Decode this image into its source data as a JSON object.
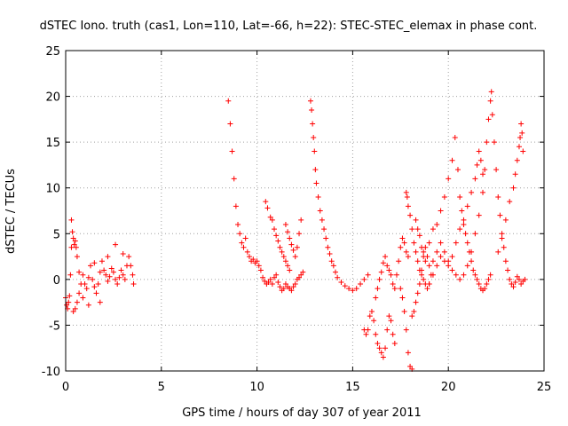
{
  "chart_data": {
    "type": "scatter",
    "title": "dSTEC Iono. truth (cas1, Lon=110, Lat=-66, h=22): STEC-STEC_elemax in phase cont.",
    "xlabel": "GPS time / hours of day 307 of year 2011",
    "ylabel": "dSTEC  / TECUs",
    "xlim": [
      0,
      25
    ],
    "ylim": [
      -10,
      25
    ],
    "xticks": [
      "0",
      "5",
      "10",
      "15",
      "20",
      "25"
    ],
    "yticks": [
      "-10",
      "-5",
      "0",
      "5",
      "10",
      "15",
      "20",
      "25"
    ],
    "grid": true,
    "marker": "+",
    "color": "#ff0000",
    "series": [
      {
        "points": [
          [
            0.0,
            -2.0
          ],
          [
            0.05,
            -2.8
          ],
          [
            0.1,
            -3.2
          ],
          [
            0.15,
            -2.5
          ],
          [
            0.2,
            -1.8
          ],
          [
            0.25,
            0.5
          ],
          [
            0.3,
            3.5
          ],
          [
            0.3,
            6.5
          ],
          [
            0.35,
            5.2
          ],
          [
            0.4,
            4.5
          ],
          [
            0.45,
            3.8
          ],
          [
            0.5,
            4.2
          ],
          [
            0.55,
            3.5
          ],
          [
            0.6,
            2.5
          ],
          [
            0.4,
            -3.5
          ],
          [
            0.5,
            -3.2
          ],
          [
            0.6,
            -2.5
          ],
          [
            0.7,
            -1.5
          ],
          [
            0.8,
            -0.5
          ],
          [
            0.9,
            0.5
          ],
          [
            1.0,
            -0.5
          ],
          [
            1.1,
            -1.0
          ],
          [
            1.2,
            0.2
          ],
          [
            1.3,
            1.5
          ],
          [
            1.4,
            0.0
          ],
          [
            1.5,
            -0.8
          ],
          [
            1.6,
            -1.5
          ],
          [
            1.7,
            -0.5
          ],
          [
            1.8,
            0.8
          ],
          [
            1.9,
            2.0
          ],
          [
            2.0,
            1.0
          ],
          [
            2.1,
            0.5
          ],
          [
            2.2,
            -0.2
          ],
          [
            2.3,
            0.3
          ],
          [
            2.4,
            1.2
          ],
          [
            2.5,
            0.8
          ],
          [
            2.6,
            0.0
          ],
          [
            2.7,
            -0.5
          ],
          [
            2.8,
            0.2
          ],
          [
            2.9,
            1.0
          ],
          [
            3.0,
            0.5
          ],
          [
            3.1,
            0.0
          ],
          [
            3.2,
            1.5
          ],
          [
            3.3,
            2.5
          ],
          [
            3.4,
            1.5
          ],
          [
            3.5,
            0.5
          ],
          [
            3.55,
            -0.5
          ],
          [
            0.7,
            0.8
          ],
          [
            0.9,
            -2.0
          ],
          [
            1.2,
            -2.8
          ],
          [
            1.5,
            1.8
          ],
          [
            1.8,
            -2.5
          ],
          [
            2.2,
            2.5
          ],
          [
            2.6,
            3.8
          ],
          [
            3.0,
            2.8
          ],
          [
            8.5,
            19.5
          ],
          [
            8.6,
            17.0
          ],
          [
            8.7,
            14.0
          ],
          [
            8.8,
            11.0
          ],
          [
            8.9,
            8.0
          ],
          [
            9.0,
            6.0
          ],
          [
            9.1,
            5.0
          ],
          [
            9.2,
            4.0
          ],
          [
            9.3,
            3.5
          ],
          [
            9.4,
            4.5
          ],
          [
            9.5,
            3.0
          ],
          [
            9.6,
            2.5
          ],
          [
            9.7,
            2.0
          ],
          [
            9.8,
            2.2
          ],
          [
            9.9,
            1.8
          ],
          [
            10.0,
            2.0
          ],
          [
            10.1,
            1.5
          ],
          [
            10.2,
            1.0
          ],
          [
            10.3,
            0.2
          ],
          [
            10.4,
            -0.2
          ],
          [
            10.5,
            -0.5
          ],
          [
            10.6,
            -0.3
          ],
          [
            10.7,
            0.0
          ],
          [
            10.8,
            -0.5
          ],
          [
            10.9,
            0.2
          ],
          [
            11.0,
            0.5
          ],
          [
            11.1,
            -0.3
          ],
          [
            11.2,
            -0.8
          ],
          [
            11.3,
            -1.2
          ],
          [
            11.4,
            -1.0
          ],
          [
            11.5,
            -0.5
          ],
          [
            11.6,
            -0.8
          ],
          [
            11.7,
            -1.0
          ],
          [
            11.8,
            -1.2
          ],
          [
            11.9,
            -0.8
          ],
          [
            12.0,
            -0.5
          ],
          [
            12.1,
            0.0
          ],
          [
            12.2,
            0.2
          ],
          [
            12.3,
            0.5
          ],
          [
            12.4,
            0.8
          ],
          [
            10.45,
            8.5
          ],
          [
            10.55,
            7.8
          ],
          [
            10.7,
            6.8
          ],
          [
            10.8,
            6.5
          ],
          [
            10.9,
            5.5
          ],
          [
            11.0,
            4.8
          ],
          [
            11.1,
            4.2
          ],
          [
            11.2,
            3.5
          ],
          [
            11.3,
            3.0
          ],
          [
            11.4,
            2.5
          ],
          [
            11.5,
            2.0
          ],
          [
            11.6,
            1.5
          ],
          [
            11.7,
            1.0
          ],
          [
            11.5,
            6.0
          ],
          [
            11.6,
            5.2
          ],
          [
            11.7,
            4.5
          ],
          [
            11.8,
            3.8
          ],
          [
            11.9,
            3.2
          ],
          [
            12.0,
            2.5
          ],
          [
            12.1,
            3.5
          ],
          [
            12.2,
            5.0
          ],
          [
            12.3,
            6.5
          ],
          [
            12.8,
            19.5
          ],
          [
            12.85,
            18.5
          ],
          [
            12.9,
            17.0
          ],
          [
            12.95,
            15.5
          ],
          [
            13.0,
            14.0
          ],
          [
            13.05,
            12.0
          ],
          [
            13.1,
            10.5
          ],
          [
            13.2,
            9.0
          ],
          [
            13.3,
            7.5
          ],
          [
            13.4,
            6.5
          ],
          [
            13.5,
            5.5
          ],
          [
            13.6,
            4.5
          ],
          [
            13.7,
            3.5
          ],
          [
            13.8,
            2.8
          ],
          [
            13.9,
            2.0
          ],
          [
            14.0,
            1.5
          ],
          [
            14.1,
            0.8
          ],
          [
            14.2,
            0.2
          ],
          [
            14.4,
            -0.3
          ],
          [
            14.6,
            -0.7
          ],
          [
            14.8,
            -1.0
          ],
          [
            15.0,
            -1.2
          ],
          [
            15.2,
            -1.0
          ],
          [
            15.4,
            -0.5
          ],
          [
            15.6,
            0.0
          ],
          [
            15.8,
            0.5
          ],
          [
            15.6,
            -5.5
          ],
          [
            15.7,
            -6.0
          ],
          [
            15.8,
            -5.5
          ],
          [
            15.9,
            -4.0
          ],
          [
            16.0,
            -3.5
          ],
          [
            16.1,
            -4.5
          ],
          [
            16.2,
            -6.0
          ],
          [
            16.3,
            -7.0
          ],
          [
            16.4,
            -7.5
          ],
          [
            16.5,
            -8.0
          ],
          [
            16.6,
            -8.5
          ],
          [
            16.7,
            -7.5
          ],
          [
            16.8,
            -5.5
          ],
          [
            16.9,
            -4.0
          ],
          [
            17.0,
            -4.5
          ],
          [
            17.1,
            -6.0
          ],
          [
            17.2,
            -7.0
          ],
          [
            16.2,
            -2.0
          ],
          [
            16.3,
            -1.0
          ],
          [
            16.4,
            0.0
          ],
          [
            16.5,
            0.8
          ],
          [
            16.6,
            1.8
          ],
          [
            16.7,
            2.5
          ],
          [
            16.8,
            1.5
          ],
          [
            16.9,
            1.0
          ],
          [
            17.0,
            0.5
          ],
          [
            17.1,
            -0.5
          ],
          [
            17.2,
            -1.0
          ],
          [
            17.3,
            0.5
          ],
          [
            17.4,
            2.0
          ],
          [
            17.5,
            3.5
          ],
          [
            17.6,
            4.5
          ],
          [
            17.7,
            4.0
          ],
          [
            17.8,
            3.0
          ],
          [
            17.9,
            2.5
          ],
          [
            17.5,
            -1.0
          ],
          [
            17.6,
            -2.0
          ],
          [
            17.7,
            -3.5
          ],
          [
            17.8,
            -5.5
          ],
          [
            17.9,
            -8.0
          ],
          [
            18.0,
            -9.5
          ],
          [
            18.1,
            -9.8
          ],
          [
            17.8,
            9.5
          ],
          [
            17.85,
            9.0
          ],
          [
            17.9,
            8.0
          ],
          [
            18.0,
            7.0
          ],
          [
            18.1,
            5.5
          ],
          [
            18.2,
            4.0
          ],
          [
            18.3,
            3.0
          ],
          [
            18.4,
            2.0
          ],
          [
            18.5,
            1.0
          ],
          [
            18.6,
            0.5
          ],
          [
            18.7,
            0.0
          ],
          [
            18.8,
            -0.5
          ],
          [
            18.9,
            -1.0
          ],
          [
            19.0,
            -0.5
          ],
          [
            19.1,
            0.5
          ],
          [
            18.1,
            -4.0
          ],
          [
            18.2,
            -3.5
          ],
          [
            18.3,
            -2.5
          ],
          [
            18.4,
            -1.5
          ],
          [
            18.5,
            -0.5
          ],
          [
            18.6,
            1.0
          ],
          [
            18.7,
            2.5
          ],
          [
            18.8,
            3.5
          ],
          [
            18.9,
            2.5
          ],
          [
            19.0,
            1.5
          ],
          [
            18.3,
            6.5
          ],
          [
            18.4,
            5.5
          ],
          [
            18.5,
            4.8
          ],
          [
            18.6,
            3.5
          ],
          [
            18.7,
            3.0
          ],
          [
            18.8,
            2.0
          ],
          [
            19.0,
            4.0
          ],
          [
            19.2,
            5.5
          ],
          [
            19.4,
            6.0
          ],
          [
            19.6,
            7.5
          ],
          [
            19.8,
            9.0
          ],
          [
            20.0,
            11.0
          ],
          [
            20.2,
            13.0
          ],
          [
            20.35,
            15.5
          ],
          [
            20.5,
            12.0
          ],
          [
            20.6,
            9.0
          ],
          [
            20.7,
            7.5
          ],
          [
            20.8,
            6.0
          ],
          [
            20.9,
            5.0
          ],
          [
            21.0,
            4.0
          ],
          [
            21.1,
            3.0
          ],
          [
            21.2,
            2.0
          ],
          [
            21.3,
            1.0
          ],
          [
            21.4,
            0.5
          ],
          [
            21.5,
            0.0
          ],
          [
            21.6,
            -0.5
          ],
          [
            21.7,
            -1.0
          ],
          [
            21.8,
            -1.2
          ],
          [
            21.9,
            -1.0
          ],
          [
            22.0,
            -0.5
          ],
          [
            22.1,
            0.0
          ],
          [
            22.2,
            0.5
          ],
          [
            19.2,
            2.0
          ],
          [
            19.4,
            3.0
          ],
          [
            19.6,
            4.0
          ],
          [
            19.8,
            3.0
          ],
          [
            20.0,
            2.0
          ],
          [
            20.2,
            1.0
          ],
          [
            20.4,
            0.5
          ],
          [
            20.6,
            0.0
          ],
          [
            20.8,
            0.5
          ],
          [
            21.0,
            1.5
          ],
          [
            21.2,
            3.0
          ],
          [
            21.4,
            5.0
          ],
          [
            21.6,
            7.0
          ],
          [
            21.8,
            9.5
          ],
          [
            21.9,
            12.0
          ],
          [
            22.0,
            15.0
          ],
          [
            22.1,
            17.5
          ],
          [
            22.2,
            19.5
          ],
          [
            22.25,
            20.5
          ],
          [
            22.3,
            18.0
          ],
          [
            22.4,
            15.0
          ],
          [
            22.5,
            12.0
          ],
          [
            22.6,
            9.0
          ],
          [
            22.7,
            7.0
          ],
          [
            22.8,
            5.0
          ],
          [
            22.9,
            3.5
          ],
          [
            23.0,
            2.0
          ],
          [
            23.1,
            1.0
          ],
          [
            23.2,
            0.0
          ],
          [
            23.3,
            -0.5
          ],
          [
            23.4,
            -0.8
          ],
          [
            23.5,
            -0.3
          ],
          [
            23.6,
            0.3
          ],
          [
            23.7,
            0.0
          ],
          [
            23.8,
            -0.5
          ],
          [
            23.9,
            -0.2
          ],
          [
            24.0,
            0.0
          ],
          [
            22.6,
            3.0
          ],
          [
            22.8,
            4.5
          ],
          [
            23.0,
            6.5
          ],
          [
            23.2,
            8.5
          ],
          [
            23.4,
            10.0
          ],
          [
            23.5,
            11.5
          ],
          [
            23.6,
            13.0
          ],
          [
            23.7,
            14.5
          ],
          [
            23.75,
            15.5
          ],
          [
            23.8,
            17.0
          ],
          [
            23.85,
            16.0
          ],
          [
            23.9,
            14.0
          ],
          [
            19.0,
            -0.5
          ],
          [
            19.2,
            0.5
          ],
          [
            19.4,
            1.5
          ],
          [
            19.6,
            2.5
          ],
          [
            19.8,
            2.0
          ],
          [
            20.0,
            1.5
          ],
          [
            20.2,
            2.5
          ],
          [
            20.4,
            4.0
          ],
          [
            20.6,
            5.5
          ],
          [
            20.8,
            6.5
          ],
          [
            21.0,
            8.0
          ],
          [
            21.2,
            9.5
          ],
          [
            21.4,
            11.0
          ],
          [
            21.5,
            12.5
          ],
          [
            21.6,
            14.0
          ],
          [
            21.7,
            13.0
          ],
          [
            21.8,
            11.5
          ]
        ]
      }
    ]
  }
}
